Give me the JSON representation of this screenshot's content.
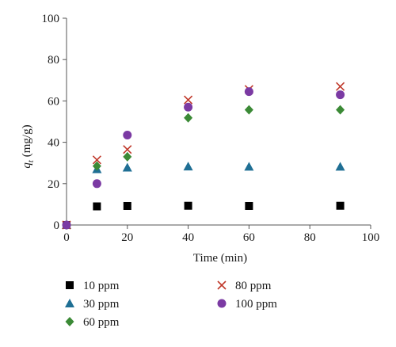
{
  "chart_data": {
    "type": "scatter",
    "title": "",
    "xlabel": "Time (min)",
    "ylabel_main": "q",
    "ylabel_sub": "t",
    "ylabel_unit": " (mg/g)",
    "xlim": [
      0,
      100
    ],
    "ylim": [
      0,
      100
    ],
    "x_ticks": [
      0,
      20,
      40,
      60,
      80,
      100
    ],
    "y_ticks": [
      0,
      20,
      40,
      60,
      80,
      100
    ],
    "grid": false,
    "legend_position": "bottom",
    "series": [
      {
        "name": "10 ppm",
        "marker": "square",
        "color": "#000000",
        "points": [
          [
            0,
            0
          ],
          [
            10,
            9
          ],
          [
            20,
            9.2
          ],
          [
            40,
            9.3
          ],
          [
            60,
            9.2
          ],
          [
            90,
            9.3
          ]
        ]
      },
      {
        "name": "30 ppm",
        "marker": "triangle",
        "color": "#1f6f94",
        "points": [
          [
            0,
            0
          ],
          [
            10,
            27
          ],
          [
            20,
            27.8
          ],
          [
            40,
            28.3
          ],
          [
            60,
            28.2
          ],
          [
            90,
            28.2
          ]
        ]
      },
      {
        "name": "60 ppm",
        "marker": "diamond",
        "color": "#3b8a36",
        "points": [
          [
            0,
            0
          ],
          [
            10,
            28.5
          ],
          [
            20,
            33
          ],
          [
            40,
            51.8
          ],
          [
            60,
            55.7
          ],
          [
            90,
            55.7
          ]
        ]
      },
      {
        "name": "80 ppm",
        "marker": "cross",
        "color": "#c0392b",
        "points": [
          [
            0,
            0
          ],
          [
            10,
            31.5
          ],
          [
            20,
            36.5
          ],
          [
            40,
            60.5
          ],
          [
            60,
            65.6
          ],
          [
            90,
            67
          ]
        ]
      },
      {
        "name": "100 ppm",
        "marker": "circle",
        "color": "#7b3aa3",
        "points": [
          [
            0,
            0
          ],
          [
            10,
            20
          ],
          [
            20,
            43.5
          ],
          [
            40,
            57
          ],
          [
            60,
            64.5
          ],
          [
            90,
            63
          ]
        ]
      }
    ]
  }
}
